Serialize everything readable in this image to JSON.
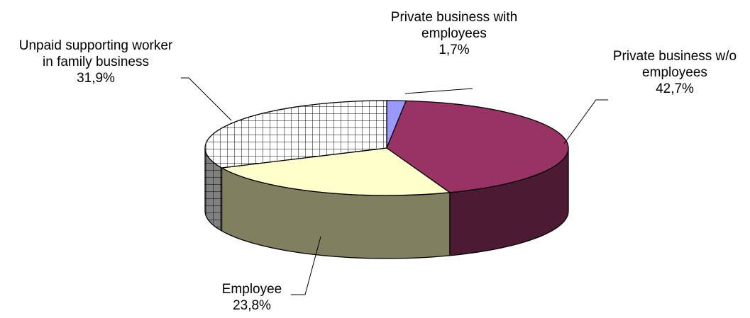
{
  "chart_data": {
    "type": "pie",
    "three_d": true,
    "start_angle_deg": 90,
    "direction": "clockwise",
    "slices": [
      {
        "label_lines": [
          "Private business with",
          "employees"
        ],
        "value": 1.7,
        "value_label": "1,7%",
        "color": "#9999ff",
        "fill_pattern": "solid"
      },
      {
        "label_lines": [
          "Private business w/o",
          "employees"
        ],
        "value": 42.7,
        "value_label": "42,7%",
        "color": "#993366",
        "fill_pattern": "solid"
      },
      {
        "label_lines": [
          "Employee"
        ],
        "value": 23.8,
        "value_label": "23,8%",
        "color": "#ffffcc",
        "fill_pattern": "solid"
      },
      {
        "label_lines": [
          "Unpaid supporting worker",
          "in family business"
        ],
        "value": 31.9,
        "value_label": "31,9%",
        "color": "#ffffff",
        "fill_pattern": "grid"
      }
    ],
    "side_colors": [
      "#5a5ab3",
      "#4d1a33",
      "#808060",
      "#808080"
    ],
    "legend": "none"
  }
}
